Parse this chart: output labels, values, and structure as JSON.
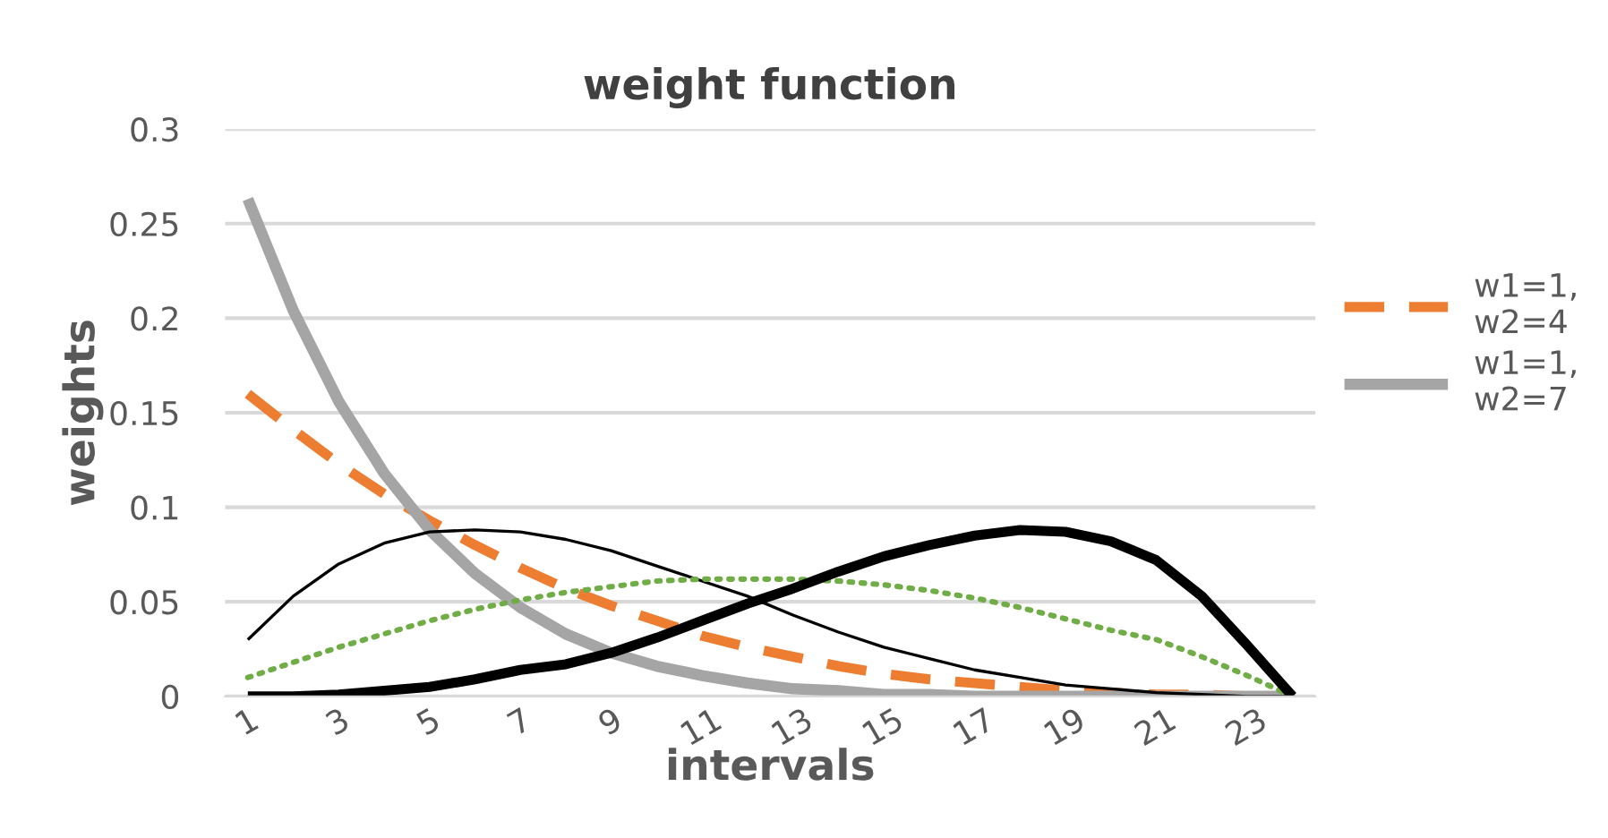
{
  "chart_data": {
    "type": "line",
    "title": "weight function",
    "xlabel": "intervals",
    "ylabel": "weights",
    "categories": [
      "1",
      null,
      "3",
      null,
      "5",
      null,
      "7",
      null,
      "9",
      null,
      "11",
      null,
      "13",
      null,
      "15",
      null,
      "17",
      null,
      "19",
      null,
      "21",
      null,
      "23",
      null
    ],
    "ylim": [
      0,
      0.3
    ],
    "yticks": [
      0,
      0.05,
      0.1,
      0.15,
      0.2,
      0.25,
      0.3
    ],
    "grid": "y",
    "legend": "right",
    "marker": "none",
    "series": [
      {
        "name": "w1=1,\nw2=4",
        "color": "#ed7d31",
        "line_style": "dashed",
        "values": [
          0.16,
          0.141,
          0.123,
          0.107,
          0.093,
          0.08,
          0.068,
          0.057,
          0.048,
          0.04,
          0.032,
          0.026,
          0.021,
          0.016,
          0.012,
          0.009,
          0.007,
          0.005,
          0.003,
          0.002,
          0.001,
          0.001,
          0,
          0
        ]
      },
      {
        "name": "w1=1,\nw2=7",
        "color": "#a5a5a5",
        "line_style": "solid",
        "values": [
          0.263,
          0.204,
          0.156,
          0.118,
          0.088,
          0.065,
          0.047,
          0.033,
          0.023,
          0.016,
          0.011,
          0.007,
          0.004,
          0.003,
          0.001,
          0.001,
          0,
          0,
          0,
          0,
          0,
          0,
          0,
          0
        ]
      },
      {
        "color": "#000000",
        "line_style": "solid",
        "values": [
          0.03,
          0.053,
          0.07,
          0.081,
          0.087,
          0.088,
          0.087,
          0.083,
          0.077,
          0.069,
          0.061,
          0.053,
          0.043,
          0.034,
          0.026,
          0.02,
          0.014,
          0.01,
          0.006,
          0.004,
          0.002,
          0.001,
          0,
          0
        ]
      },
      {
        "color": "#70ad47",
        "line_style": "dotted",
        "values": [
          0.01,
          0.018,
          0.026,
          0.033,
          0.04,
          0.046,
          0.051,
          0.055,
          0.058,
          0.061,
          0.062,
          0.062,
          0.062,
          0.061,
          0.059,
          0.056,
          0.052,
          0.047,
          0.041,
          0.035,
          0.03,
          0.021,
          0.011,
          0
        ]
      },
      {
        "color": "#000000",
        "line_style": "solid",
        "values": [
          0,
          0,
          0.001,
          0.003,
          0.005,
          0.009,
          0.014,
          0.017,
          0.023,
          0.031,
          0.04,
          0.049,
          0.057,
          0.066,
          0.074,
          0.08,
          0.085,
          0.088,
          0.087,
          0.082,
          0.072,
          0.053,
          0.027,
          0
        ]
      }
    ]
  }
}
